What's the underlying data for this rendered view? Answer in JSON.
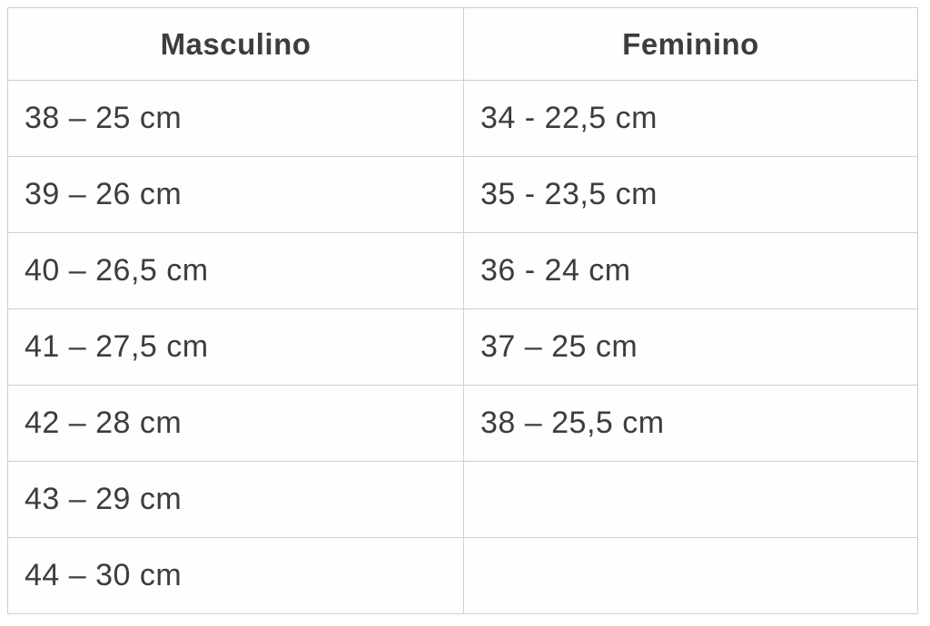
{
  "table": {
    "title": "shoe-size-conversion",
    "headers": {
      "masculino": "Masculino",
      "feminino": "Feminino"
    },
    "rows": [
      {
        "masculino": "38 – 25 cm",
        "feminino": "34 - 22,5 cm"
      },
      {
        "masculino": "39 – 26 cm",
        "feminino": "35 - 23,5 cm"
      },
      {
        "masculino": "40 – 26,5 cm",
        "feminino": "36 - 24 cm"
      },
      {
        "masculino": "41 – 27,5 cm",
        "feminino": "37 – 25 cm"
      },
      {
        "masculino": "42 – 28 cm",
        "feminino": "38 – 25,5 cm"
      },
      {
        "masculino": "43 – 29 cm",
        "feminino": ""
      },
      {
        "masculino": "44 – 30 cm",
        "feminino": ""
      }
    ],
    "colors": {
      "border": "#cfcfcf",
      "text": "#3d3d3d",
      "background": "#fefefe"
    }
  }
}
